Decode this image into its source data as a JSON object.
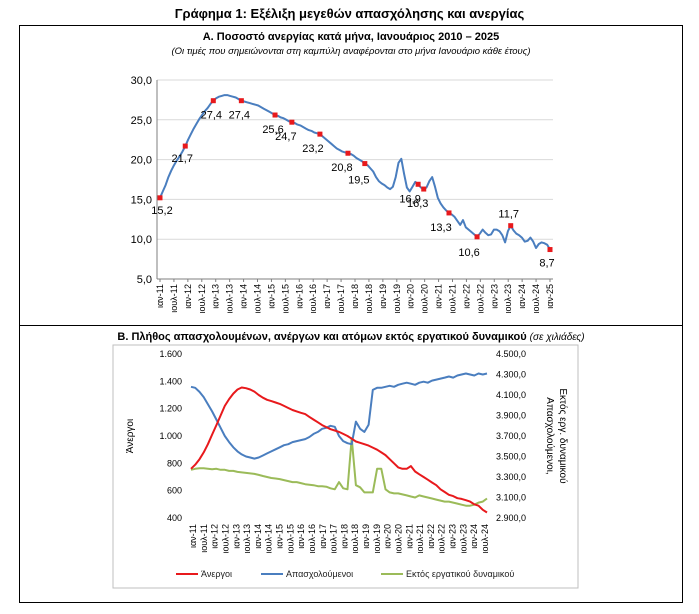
{
  "title": "Γράφημα 1: Εξέλιξη μεγεθών απασχόλησης και ανεργίας",
  "sectionA": {
    "title": "Α. Ποσοστό ανεργίας κατά μήνα, Ιανουάριος 2010 – 2025",
    "subtitle": "(Οι τιμές που σημειώνονται στη καμπύλη αναφέρονται στο μήνα Ιανουάριο κάθε έτους)"
  },
  "sectionB": {
    "title": "Β. Πλήθος απασχολουμένων, ανέργων και ατόμων εκτός εργατικού δυναμικού",
    "note": "(σε χιλιάδες)"
  },
  "colors": {
    "unemployed": "#e8191c",
    "employed": "#4a7ebf",
    "inactive": "#9bbb59",
    "rate": "#4a7ebf",
    "marker": "#e8191c"
  },
  "chart_data": [
    {
      "type": "line",
      "xlabel": "",
      "ylabel": "",
      "ylim": [
        5,
        30
      ],
      "yticks": [
        "5,0",
        "10,0",
        "15,0",
        "20,0",
        "25,0",
        "30,0"
      ],
      "x_ticks": [
        "ιαν-11",
        "ιουλ-11",
        "ιαν-12",
        "ιουλ-12",
        "ιαν-13",
        "ιουλ-13",
        "ιαν-14",
        "ιουλ-14",
        "ιαν-15",
        "ιουλ-15",
        "ιαν-16",
        "ιουλ-16",
        "ιαν-17",
        "ιουλ-17",
        "ιαν-18",
        "ιουλ-18",
        "ιαν-19",
        "ιουλ-19",
        "ιαν-20",
        "ιουλ-20",
        "ιαν-21",
        "ιουλ-21",
        "ιαν-22",
        "ιουλ-22",
        "ιαν-23",
        "ιουλ-23",
        "ιαν-24",
        "ιουλ-24",
        "ιαν-25"
      ],
      "series": [
        {
          "values": [
            15.2,
            16.0,
            16.8,
            17.8,
            18.6,
            19.3,
            19.9,
            20.4,
            21.0,
            21.7,
            22.5,
            23.2,
            23.9,
            24.5,
            25.1,
            25.6,
            26.1,
            26.5,
            27.0,
            27.4,
            27.7,
            27.9,
            28.0,
            28.1,
            28.1,
            28.0,
            27.9,
            27.8,
            27.6,
            27.4,
            27.3,
            27.2,
            27.1,
            27.0,
            26.9,
            26.8,
            26.6,
            26.4,
            26.2,
            26.0,
            25.8,
            25.6,
            25.5,
            25.3,
            25.2,
            25.0,
            24.8,
            24.7,
            24.6,
            24.4,
            24.3,
            24.1,
            23.9,
            23.7,
            23.6,
            23.4,
            23.3,
            23.2,
            22.9,
            22.6,
            22.3,
            22.0,
            21.7,
            21.4,
            21.2,
            21.0,
            20.9,
            20.8,
            20.7,
            20.5,
            20.2,
            20.0,
            19.8,
            19.5,
            19.3,
            18.9,
            18.5,
            17.8,
            17.3,
            17.0,
            16.8,
            16.5,
            16.3,
            16.6,
            17.8,
            19.6,
            20.1,
            18.2,
            16.5,
            16.0,
            16.6,
            17.2,
            16.9,
            16.5,
            16.3,
            16.5,
            17.3,
            17.8,
            16.6,
            15.2,
            14.5,
            14.0,
            13.6,
            13.3,
            13.1,
            12.8,
            12.3,
            11.8,
            12.4,
            11.5,
            11.2,
            10.9,
            10.6,
            10.3,
            10.7,
            11.2,
            10.8,
            10.5,
            10.6,
            11.2,
            11.2,
            11.0,
            10.5,
            9.6,
            11.0,
            11.7,
            11.1,
            10.7,
            10.5,
            10.2,
            9.7,
            9.8,
            10.2,
            9.7,
            8.9,
            9.4,
            9.6,
            9.5,
            9.3,
            8.7
          ]
        }
      ],
      "january_labels": [
        {
          "value": "15,2",
          "i": 0
        },
        {
          "value": "21,7",
          "i": 9
        },
        {
          "value": "27,4",
          "i": 19
        },
        {
          "value": "27,4",
          "i": 29
        },
        {
          "value": "25,6",
          "i": 41
        },
        {
          "value": "24,7",
          "i": 47
        },
        {
          "value": "23,2",
          "i": 57
        },
        {
          "value": "20,8",
          "i": 67
        },
        {
          "value": "19,5",
          "i": 73
        },
        {
          "value": "16,9",
          "i": 92
        },
        {
          "value": "16,3",
          "i": 94
        },
        {
          "value": "13,3",
          "i": 103
        },
        {
          "value": "10,6",
          "i": 113
        },
        {
          "value": "11,7",
          "i": 125
        },
        {
          "value": "8,7",
          "i": 139
        }
      ]
    },
    {
      "type": "line",
      "ylabel_left": "Άνεργοι",
      "ylabel_right_line1": "Απασχολούμενοι,",
      "ylabel_right_line2": "Εκτός εργ. δυναμικού",
      "ylim_left": [
        400,
        1600
      ],
      "ylim_right": [
        2900,
        4500
      ],
      "yticks_left": [
        "400",
        "600",
        "800",
        "1.000",
        "1.200",
        "1.400",
        "1.600"
      ],
      "yticks_right": [
        "2.900,0",
        "3.100,0",
        "3.300,0",
        "3.500,0",
        "3.700,0",
        "3.900,0",
        "4.100,0",
        "4.300,0",
        "4.500,0"
      ],
      "x_ticks": [
        "ιαν-11",
        "ιουλ-11",
        "ιαν-12",
        "ιουλ-12",
        "ιαν-13",
        "ιουλ-13",
        "ιαν-14",
        "ιουλ-14",
        "ιαν-15",
        "ιουλ-15",
        "ιαν-16",
        "ιουλ-16",
        "ιαν-17",
        "ιουλ-17",
        "ιαν-18",
        "ιουλ-18",
        "ιαν-19",
        "ιουλ-19",
        "ιαν-20",
        "ιουλ-20",
        "ιαν-21",
        "ιουλ-21",
        "ιαν-22",
        "ιουλ-22",
        "ιαν-23",
        "ιουλ-23",
        "ιαν-24",
        "ιουλ-24"
      ],
      "series": [
        {
          "name": "Άνεργοι",
          "axis": "left",
          "values": [
            760,
            790,
            830,
            880,
            940,
            1010,
            1080,
            1150,
            1220,
            1270,
            1310,
            1340,
            1355,
            1350,
            1340,
            1325,
            1300,
            1280,
            1265,
            1255,
            1245,
            1235,
            1220,
            1205,
            1190,
            1180,
            1170,
            1160,
            1140,
            1120,
            1100,
            1080,
            1065,
            1050,
            1040,
            1030,
            1015,
            1000,
            980,
            960,
            950,
            940,
            930,
            915,
            900,
            880,
            860,
            830,
            800,
            770,
            760,
            760,
            780,
            740,
            720,
            700,
            680,
            660,
            640,
            610,
            590,
            570,
            560,
            545,
            540,
            530,
            520,
            500,
            490,
            460,
            440
          ]
        },
        {
          "name": "Απασχολούμενοι",
          "axis": "right",
          "values": [
            4180,
            4170,
            4130,
            4080,
            4010,
            3940,
            3860,
            3780,
            3700,
            3640,
            3590,
            3550,
            3520,
            3500,
            3490,
            3480,
            3490,
            3510,
            3530,
            3550,
            3570,
            3590,
            3610,
            3620,
            3640,
            3650,
            3660,
            3670,
            3690,
            3720,
            3740,
            3770,
            3780,
            3800,
            3790,
            3700,
            3650,
            3630,
            3620,
            3840,
            3770,
            3740,
            3810,
            4150,
            4170,
            4170,
            4180,
            4190,
            4180,
            4200,
            4210,
            4220,
            4210,
            4200,
            4220,
            4230,
            4220,
            4240,
            4250,
            4260,
            4270,
            4280,
            4270,
            4290,
            4300,
            4310,
            4300,
            4290,
            4310,
            4300,
            4310
          ]
        },
        {
          "name": "Εκτός εργατικού δυναμικού",
          "axis": "right",
          "values": [
            3370,
            3380,
            3385,
            3385,
            3380,
            3375,
            3380,
            3370,
            3370,
            3360,
            3360,
            3350,
            3345,
            3340,
            3335,
            3330,
            3320,
            3310,
            3300,
            3290,
            3285,
            3280,
            3270,
            3260,
            3250,
            3250,
            3240,
            3230,
            3225,
            3220,
            3210,
            3210,
            3205,
            3190,
            3180,
            3250,
            3190,
            3180,
            3680,
            3220,
            3200,
            3150,
            3150,
            3150,
            3380,
            3380,
            3180,
            3150,
            3140,
            3140,
            3130,
            3120,
            3110,
            3100,
            3120,
            3110,
            3100,
            3090,
            3080,
            3070,
            3060,
            3060,
            3050,
            3040,
            3030,
            3020,
            3020,
            3030,
            3050,
            3060,
            3090
          ]
        }
      ],
      "legend": [
        "Άνεργοι",
        "Απασχολούμενοι",
        "Εκτός εργατικού δυναμικού"
      ]
    }
  ]
}
